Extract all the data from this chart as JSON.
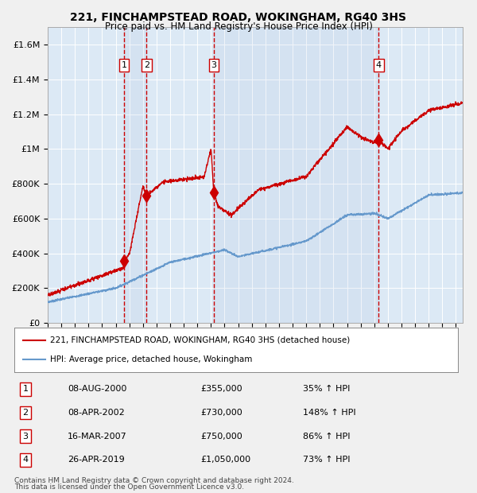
{
  "title1": "221, FINCHAMPSTEAD ROAD, WOKINGHAM, RG40 3HS",
  "title2": "Price paid vs. HM Land Registry's House Price Index (HPI)",
  "legend_line1": "221, FINCHAMPSTEAD ROAD, WOKINGHAM, RG40 3HS (detached house)",
  "legend_line2": "HPI: Average price, detached house, Wokingham",
  "footer1": "Contains HM Land Registry data © Crown copyright and database right 2024.",
  "footer2": "This data is licensed under the Open Government Licence v3.0.",
  "transactions": [
    {
      "num": 1,
      "date": "08-AUG-2000",
      "price": 355000,
      "pct": "35%",
      "year": 2000.6
    },
    {
      "num": 2,
      "date": "08-APR-2002",
      "price": 730000,
      "pct": "148%",
      "year": 2002.27
    },
    {
      "num": 3,
      "date": "16-MAR-2007",
      "price": 750000,
      "pct": "86%",
      "year": 2007.2
    },
    {
      "num": 4,
      "date": "26-APR-2019",
      "price": 1050000,
      "pct": "73%",
      "year": 2019.32
    }
  ],
  "background_color": "#dce9f5",
  "plot_bg_color": "#dce9f5",
  "red_line_color": "#cc0000",
  "blue_line_color": "#6699cc",
  "grid_color": "#ffffff",
  "dashed_color": "#cc0000",
  "ylim": [
    0,
    1700000
  ],
  "xlim_start": 1995.0,
  "xlim_end": 2025.5
}
